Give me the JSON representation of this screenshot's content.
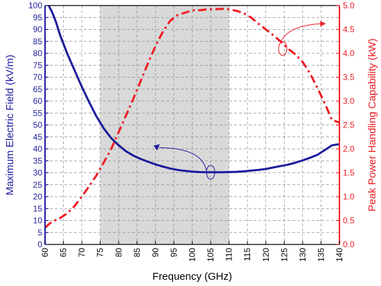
{
  "chart_data": {
    "type": "line",
    "xlabel": "Frequency (GHz)",
    "ylabel_left": "Maximum Electric Field (kV/m)",
    "ylabel_right": "Peak Power Handling Capability (kW)",
    "xlim": [
      60,
      140
    ],
    "ylim_left": [
      0,
      100
    ],
    "ylim_right": [
      0,
      5
    ],
    "xticks": [
      "60",
      "65",
      "70",
      "75",
      "80",
      "85",
      "90",
      "95",
      "100",
      "105",
      "110",
      "115",
      "120",
      "125",
      "130",
      "135",
      "140"
    ],
    "yticks_left": [
      "0",
      "5",
      "10",
      "15",
      "20",
      "25",
      "30",
      "35",
      "40",
      "45",
      "50",
      "55",
      "60",
      "65",
      "70",
      "75",
      "80",
      "85",
      "90",
      "95",
      "100"
    ],
    "yticks_right": [
      "0.0",
      "0.5",
      "1.0",
      "1.5",
      "2.0",
      "2.5",
      "3.0",
      "3.5",
      "4.0",
      "4.5",
      "5.0"
    ],
    "grid": true,
    "highlight_band": {
      "x_start": 75,
      "x_end": 110,
      "color": "#d9d9d9"
    },
    "colors": {
      "left_series": "#1c1c9c",
      "right_series": "#ee1c24"
    },
    "series": [
      {
        "axis": "left",
        "style": "solid",
        "x": [
          61,
          62,
          63,
          64,
          65,
          66,
          68,
          70,
          72,
          74,
          76,
          78,
          80,
          82,
          84,
          86,
          88,
          90,
          92,
          94,
          96,
          98,
          100,
          102,
          104,
          106,
          108,
          110,
          112,
          114,
          116,
          118,
          120,
          122,
          124,
          126,
          128,
          130,
          132,
          134,
          136,
          138,
          140
        ],
        "values": [
          100,
          97,
          93,
          88,
          84,
          80,
          73,
          66,
          59.5,
          53.5,
          48.5,
          44.5,
          41.5,
          39,
          37.2,
          35.8,
          34.6,
          33.5,
          32.6,
          31.8,
          31.2,
          30.8,
          30.5,
          30.3,
          30.2,
          30.2,
          30.2,
          30.3,
          30.4,
          30.6,
          30.9,
          31.2,
          31.6,
          32.2,
          32.8,
          33.4,
          34.2,
          35.2,
          36.3,
          37.5,
          39.5,
          41.5,
          42
        ]
      },
      {
        "axis": "right",
        "style": "dash-dot",
        "x": [
          60,
          61,
          62,
          64,
          66,
          68,
          70,
          72,
          74,
          76,
          78,
          80,
          82,
          84,
          86,
          88,
          90,
          92,
          94,
          96,
          98,
          100,
          102,
          104,
          106,
          108,
          110,
          112,
          114,
          116,
          118,
          120,
          122,
          124,
          126,
          128,
          130,
          132,
          134,
          136,
          137,
          138,
          139,
          140
        ],
        "values": [
          0.35,
          0.42,
          0.48,
          0.55,
          0.65,
          0.8,
          1.0,
          1.22,
          1.45,
          1.72,
          2.0,
          2.35,
          2.7,
          3.05,
          3.42,
          3.8,
          4.15,
          4.45,
          4.68,
          4.8,
          4.85,
          4.9,
          4.9,
          4.92,
          4.92,
          4.93,
          4.92,
          4.89,
          4.84,
          4.75,
          4.62,
          4.5,
          4.38,
          4.25,
          4.1,
          3.98,
          3.82,
          3.58,
          3.28,
          2.95,
          2.78,
          2.6,
          2.58,
          2.55
        ]
      }
    ]
  }
}
